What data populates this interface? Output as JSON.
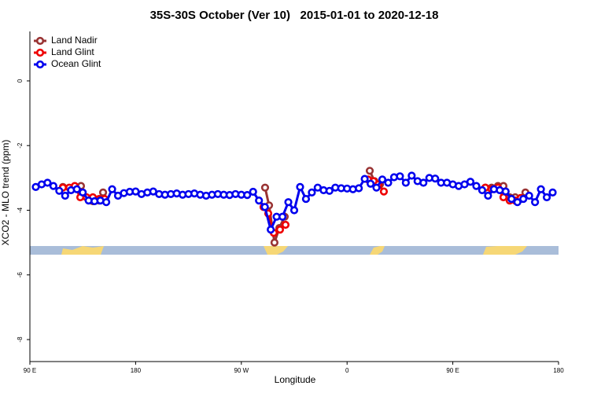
{
  "chart_data": {
    "type": "line",
    "title": "35S-30S October (Ver 10)   2015-01-01 to 2020-12-18",
    "xlabel": "Longitude",
    "ylabel": "XCO2 - MLO trend (ppm)",
    "xlim": [
      90,
      540
    ],
    "ylim": [
      -8.68,
      1.53
    ],
    "xticks": [
      {
        "value": 90,
        "label": "90 E"
      },
      180,
      {
        "value": 270,
        "label": "90 W"
      },
      {
        "value": 360,
        "label": "0"
      },
      {
        "value": 450,
        "label": "90 E"
      },
      {
        "value": 540,
        "label": "180"
      }
    ],
    "yticks": [
      0,
      -2,
      -4,
      -6,
      -8
    ],
    "legend": "top-left",
    "series": [
      {
        "name": "Land Nadir",
        "color": "#993333",
        "x": [
          118.1,
          128.2,
          133.5,
          null,
          143.6,
          148.9,
          152.3,
          null,
          290.2,
          293.6,
          298.2,
          302.3,
          306.9,
          null,
          379.3,
          383.3,
          388,
          null,
          477.7,
          483,
          488.4,
          493.1,
          498.4,
          503.1,
          507.2,
          511.8
        ],
        "values": [
          -3.28,
          -3.3,
          -3.25,
          null,
          -3.72,
          -3.7,
          -3.45,
          null,
          -3.3,
          -3.85,
          -5.0,
          -4.55,
          -4.2,
          null,
          -2.78,
          -3.1,
          -3.2,
          null,
          -3.3,
          -3.3,
          -3.25,
          -3.25,
          -3.6,
          -3.6,
          -3.65,
          -3.45
        ]
      },
      {
        "name": "Land Glint",
        "color": "#ee0000",
        "x": [
          118.1,
          123.5,
          128.2,
          132.9,
          138.2,
          143.6,
          148.9,
          153.6,
          null,
          288.9,
          292.9,
          297.6,
          302.9,
          307.6,
          null,
          377.9,
          382.6,
          386.6,
          391.3,
          null,
          477.7,
          483,
          488.4,
          493.1,
          498.4,
          503.1,
          507.8
        ],
        "values": [
          -3.3,
          -3.3,
          -3.25,
          -3.6,
          -3.6,
          -3.6,
          -3.65,
          -3.65,
          null,
          -3.9,
          -4.1,
          -4.7,
          -4.6,
          -4.45,
          null,
          -3.05,
          -3.1,
          -3.2,
          -3.42,
          null,
          -3.3,
          -3.35,
          -3.3,
          -3.6,
          -3.7,
          -3.7,
          -3.62
        ]
      },
      {
        "name": "Ocean Glint",
        "color": "#0000ee",
        "x": [
          95,
          100,
          105,
          110,
          115,
          120,
          125,
          130,
          135,
          140,
          145,
          150,
          155,
          160,
          165,
          170,
          175,
          180,
          185,
          190,
          195,
          200,
          205,
          210,
          215,
          220,
          225,
          230,
          235,
          240,
          245,
          250,
          255,
          260,
          265,
          270,
          275,
          280,
          285,
          290,
          295,
          300,
          305,
          310,
          315,
          320,
          325,
          330,
          335,
          340,
          345,
          350,
          355,
          360,
          365,
          370,
          375,
          380,
          385,
          390,
          395,
          400,
          405,
          410,
          415,
          420,
          425,
          430,
          435,
          440,
          445,
          450,
          455,
          460,
          465,
          470,
          475,
          480,
          485,
          490,
          495,
          500,
          505,
          510,
          515,
          520,
          525,
          530,
          535
        ],
        "values": [
          -3.28,
          -3.2,
          -3.15,
          -3.25,
          -3.4,
          -3.55,
          -3.38,
          -3.35,
          -3.45,
          -3.7,
          -3.72,
          -3.7,
          -3.75,
          -3.35,
          -3.55,
          -3.47,
          -3.43,
          -3.42,
          -3.5,
          -3.45,
          -3.42,
          -3.5,
          -3.52,
          -3.5,
          -3.48,
          -3.52,
          -3.5,
          -3.48,
          -3.52,
          -3.55,
          -3.52,
          -3.5,
          -3.52,
          -3.53,
          -3.5,
          -3.52,
          -3.53,
          -3.43,
          -3.7,
          -3.9,
          -4.6,
          -4.2,
          -4.2,
          -3.75,
          -4.0,
          -3.28,
          -3.65,
          -3.45,
          -3.3,
          -3.38,
          -3.4,
          -3.3,
          -3.32,
          -3.33,
          -3.35,
          -3.32,
          -3.03,
          -3.18,
          -3.3,
          -3.05,
          -3.15,
          -2.98,
          -2.95,
          -3.15,
          -2.93,
          -3.1,
          -3.15,
          -3.0,
          -3.02,
          -3.15,
          -3.15,
          -3.2,
          -3.25,
          -3.2,
          -3.12,
          -3.25,
          -3.38,
          -3.55,
          -3.35,
          -3.38,
          -3.42,
          -3.65,
          -3.75,
          -3.65,
          -3.55,
          -3.75,
          -3.35,
          -3.6,
          -3.45
        ]
      }
    ]
  }
}
